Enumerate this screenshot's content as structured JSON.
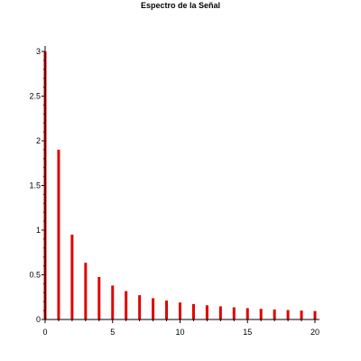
{
  "chart_data": {
    "type": "bar",
    "title": "Espectro de la Señal",
    "xlabel": "",
    "ylabel": "",
    "xlim": [
      0,
      20
    ],
    "ylim": [
      0,
      3
    ],
    "x_ticks": [
      0,
      5,
      10,
      15,
      20
    ],
    "y_ticks": [
      0,
      0.5,
      1,
      1.5,
      2,
      2.5,
      3
    ],
    "x_tick_labels": [
      "0",
      "5",
      "10",
      "15",
      "20"
    ],
    "y_tick_labels": [
      "0",
      "0.5",
      "1",
      "1.5",
      "2",
      "2.5",
      "3"
    ],
    "grid": false,
    "color": "#e00000",
    "x": [
      0,
      1,
      2,
      3,
      4,
      5,
      6,
      7,
      8,
      9,
      10,
      11,
      12,
      13,
      14,
      15,
      16,
      17,
      18,
      19,
      20
    ],
    "values": [
      3.0,
      1.9,
      0.95,
      0.635,
      0.475,
      0.38,
      0.318,
      0.272,
      0.238,
      0.212,
      0.19,
      0.173,
      0.159,
      0.147,
      0.136,
      0.127,
      0.119,
      0.112,
      0.106,
      0.1,
      0.095
    ]
  }
}
